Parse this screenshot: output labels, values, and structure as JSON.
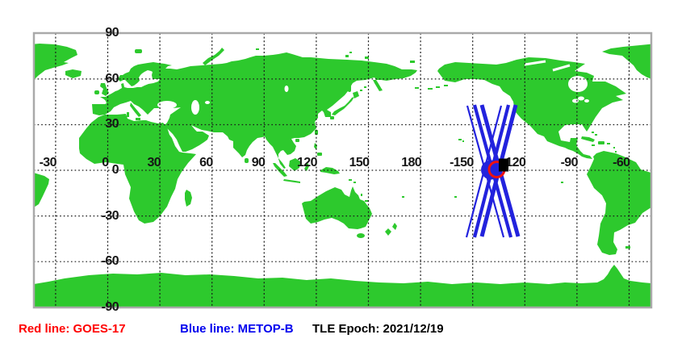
{
  "figure": {
    "type": "satellite-ground-track-world-map",
    "projection": "equirectangular, longitudes -45 to 315"
  },
  "axes": {
    "lon_ticks": [
      {
        "label": "-30",
        "value": -30
      },
      {
        "label": "0",
        "value": 0
      },
      {
        "label": "30",
        "value": 30
      },
      {
        "label": "60",
        "value": 60
      },
      {
        "label": "90",
        "value": 90
      },
      {
        "label": "120",
        "value": 120
      },
      {
        "label": "150",
        "value": 150
      },
      {
        "label": "180",
        "value": 180
      },
      {
        "label": "-150",
        "value": -150
      },
      {
        "label": "-120",
        "value": -120
      },
      {
        "label": "-90",
        "value": -90
      },
      {
        "label": "-60",
        "value": -60
      }
    ],
    "lat_ticks": [
      {
        "label": "90",
        "value": 90
      },
      {
        "label": "60",
        "value": 60
      },
      {
        "label": "30",
        "value": 30
      },
      {
        "label": "0",
        "value": 0
      },
      {
        "label": "-30",
        "value": -30
      },
      {
        "label": "-60",
        "value": -60
      },
      {
        "label": "-90",
        "value": -90
      }
    ]
  },
  "legend": {
    "red_label": "Red line: GOES-17",
    "blue_label": "Blue line: METOP-B",
    "epoch_label": "TLE Epoch: 2021/12/19"
  },
  "satellites": {
    "red_line_satellite": "GOES-17",
    "blue_line_satellite": "METOP-B",
    "tle_epoch": "2021/12/19",
    "crossing_region_longitude": "-137",
    "crossing_region_latitude": "0"
  },
  "colors": {
    "land": "#2dc92d",
    "track_blue": "#2222dd",
    "marker_red": "#ee1111",
    "marker_black": "#000000",
    "legend_red": "#ff0000",
    "legend_blue": "#0000ee",
    "grid": "#1a1a1a",
    "border": "#a9a9a9",
    "ocean": "#ffffff"
  }
}
